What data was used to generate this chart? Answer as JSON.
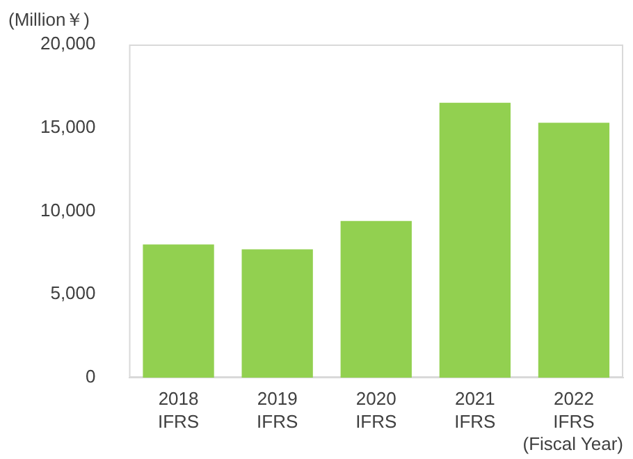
{
  "chart_data": {
    "type": "bar",
    "ylabel": "(Million￥)",
    "xlabel": "(Fiscal Year)",
    "categories": [
      "2018\nIFRS",
      "2019\nIFRS",
      "2020\nIFRS",
      "2021\nIFRS",
      "2022\nIFRS"
    ],
    "values": [
      8000,
      7700,
      9400,
      16500,
      15300
    ],
    "color": "#92d050",
    "ylim": [
      0,
      20000
    ],
    "yticks": [
      {
        "value": 0,
        "label": "0"
      },
      {
        "value": 5000,
        "label": "5,000"
      },
      {
        "value": 10000,
        "label": "10,000"
      },
      {
        "value": 15000,
        "label": "15,000"
      },
      {
        "value": 20000,
        "label": "20,000"
      }
    ],
    "grid": false,
    "legend": false
  }
}
